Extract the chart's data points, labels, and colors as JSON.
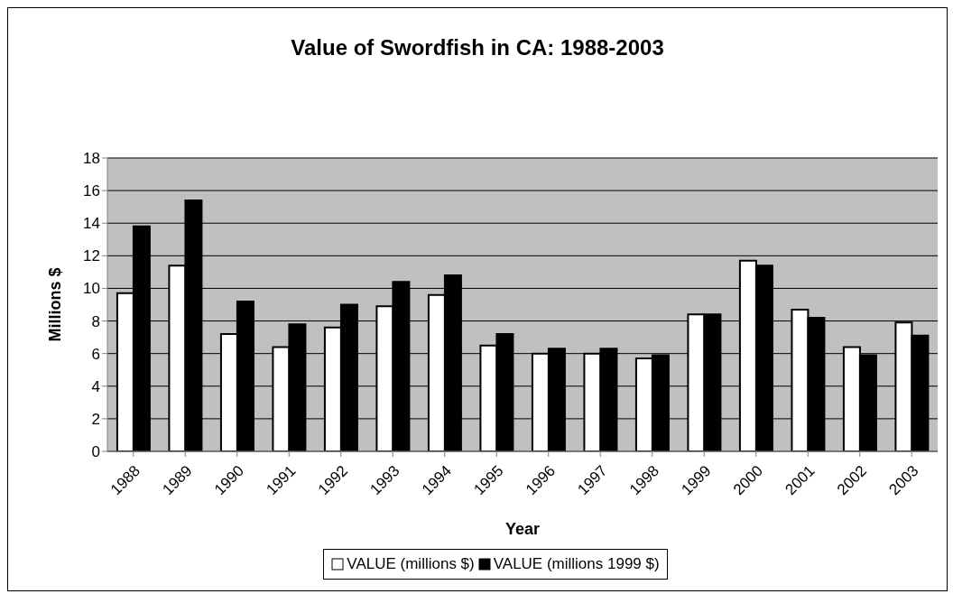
{
  "chart_data": {
    "type": "bar",
    "title": "Value of Swordfish in CA:  1988-2003",
    "xlabel": "Year",
    "ylabel": "Millions $",
    "categories": [
      "1988",
      "1989",
      "1990",
      "1991",
      "1992",
      "1993",
      "1994",
      "1995",
      "1996",
      "1997",
      "1998",
      "1999",
      "2000",
      "2001",
      "2002",
      "2003"
    ],
    "series": [
      {
        "name": "VALUE (millions $)",
        "color": "#ffffff",
        "values": [
          9.7,
          11.4,
          7.2,
          6.4,
          7.6,
          8.9,
          9.6,
          6.5,
          6.0,
          6.0,
          5.7,
          8.4,
          11.7,
          8.7,
          6.4,
          7.9
        ]
      },
      {
        "name": "VALUE (millions 1999 $)",
        "color": "#000000",
        "values": [
          13.8,
          15.4,
          9.2,
          7.8,
          9.0,
          10.4,
          10.8,
          7.2,
          6.3,
          6.3,
          5.9,
          8.4,
          11.4,
          8.2,
          5.9,
          7.1
        ]
      }
    ],
    "ylim": [
      0,
      18
    ],
    "yticks": [
      0,
      2,
      4,
      6,
      8,
      10,
      12,
      14,
      16,
      18
    ],
    "grid": "y",
    "legend": "bottom"
  }
}
